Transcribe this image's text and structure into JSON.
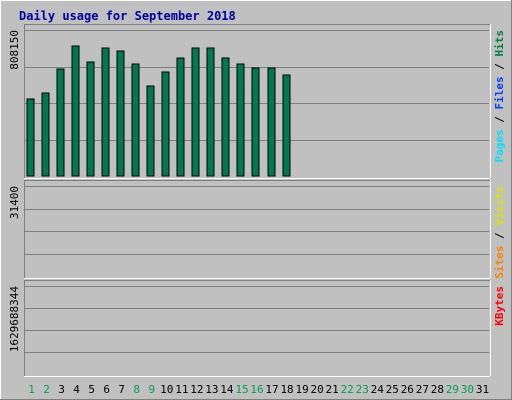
{
  "chart_data": {
    "type": "bar",
    "title": "Daily usage for September 2018",
    "categories": [
      "1",
      "2",
      "3",
      "4",
      "5",
      "6",
      "7",
      "8",
      "9",
      "10",
      "11",
      "12",
      "13",
      "14",
      "15",
      "16",
      "17",
      "18",
      "19",
      "20",
      "21",
      "22",
      "23",
      "24",
      "25",
      "26",
      "27",
      "28",
      "29",
      "30",
      "31"
    ],
    "weekend_days": [
      "1",
      "2",
      "8",
      "9",
      "15",
      "16",
      "22",
      "23",
      "29",
      "30"
    ],
    "panels": [
      {
        "id": "hits",
        "ymax_label": "808150",
        "ymax": 808150,
        "grid": true,
        "axis_label_parts": [
          {
            "text": "Pages",
            "color": "#00e0ff"
          },
          {
            "text": " / ",
            "color": "#000000"
          },
          {
            "text": "Files",
            "color": "#0040ff"
          },
          {
            "text": " / ",
            "color": "#000000"
          },
          {
            "text": "Hits",
            "color": "#008040"
          }
        ],
        "series": [
          {
            "name": "Hits",
            "color": "#007850",
            "values": [
              425000,
              462000,
              592000,
              720000,
              630000,
              706000,
              690000,
              618000,
              496000,
              576000,
              653000,
              706000,
              706000,
              652000,
              620000,
              600000,
              600000,
              560000,
              0,
              0,
              0,
              0,
              0,
              0,
              0,
              0,
              0,
              0,
              0,
              0,
              0
            ]
          },
          {
            "name": "Files",
            "color": "#0040ff",
            "values": [
              0,
              0,
              0,
              0,
              0,
              0,
              0,
              0,
              0,
              0,
              0,
              0,
              0,
              0,
              0,
              0,
              0,
              0,
              0,
              0,
              0,
              0,
              0,
              0,
              0,
              0,
              0,
              0,
              0,
              0,
              0
            ]
          },
          {
            "name": "Pages",
            "color": "#00e0ff",
            "values": [
              0,
              0,
              0,
              0,
              0,
              0,
              0,
              0,
              0,
              0,
              0,
              0,
              0,
              0,
              0,
              0,
              0,
              0,
              0,
              0,
              0,
              0,
              0,
              0,
              0,
              0,
              0,
              0,
              0,
              0,
              0
            ]
          }
        ]
      },
      {
        "id": "visits",
        "ymax_label": "31400",
        "ymax": 31400,
        "grid": true,
        "axis_label_parts": [
          {
            "text": "Sites",
            "color": "#ff8000"
          },
          {
            "text": " / ",
            "color": "#000000"
          },
          {
            "text": "Visits",
            "color": "#e0e000"
          }
        ],
        "series": [
          {
            "name": "Visits",
            "color": "#ffff00",
            "values": [
              0,
              0,
              0,
              0,
              0,
              0,
              0,
              0,
              0,
              0,
              0,
              0,
              0,
              0,
              0,
              0,
              0,
              0,
              0,
              0,
              0,
              0,
              0,
              0,
              0,
              0,
              0,
              0,
              0,
              0,
              0
            ]
          },
          {
            "name": "Sites",
            "color": "#ff8000",
            "values": [
              0,
              0,
              0,
              0,
              0,
              0,
              0,
              0,
              0,
              0,
              0,
              0,
              0,
              0,
              0,
              0,
              0,
              0,
              0,
              0,
              0,
              0,
              0,
              0,
              0,
              0,
              0,
              0,
              0,
              0,
              0
            ]
          }
        ]
      },
      {
        "id": "kbytes",
        "ymax_label": "1629688344",
        "ymax": 1629688344,
        "grid": true,
        "axis_label_parts": [
          {
            "text": "KBytes",
            "color": "#ff0000"
          }
        ],
        "series": [
          {
            "name": "KBytes",
            "color": "#ff0000",
            "values": [
              0,
              0,
              0,
              0,
              0,
              0,
              0,
              0,
              0,
              0,
              0,
              0,
              0,
              0,
              0,
              0,
              0,
              0,
              0,
              0,
              0,
              0,
              0,
              0,
              0,
              0,
              0,
              0,
              0,
              0,
              0
            ]
          }
        ]
      }
    ]
  }
}
